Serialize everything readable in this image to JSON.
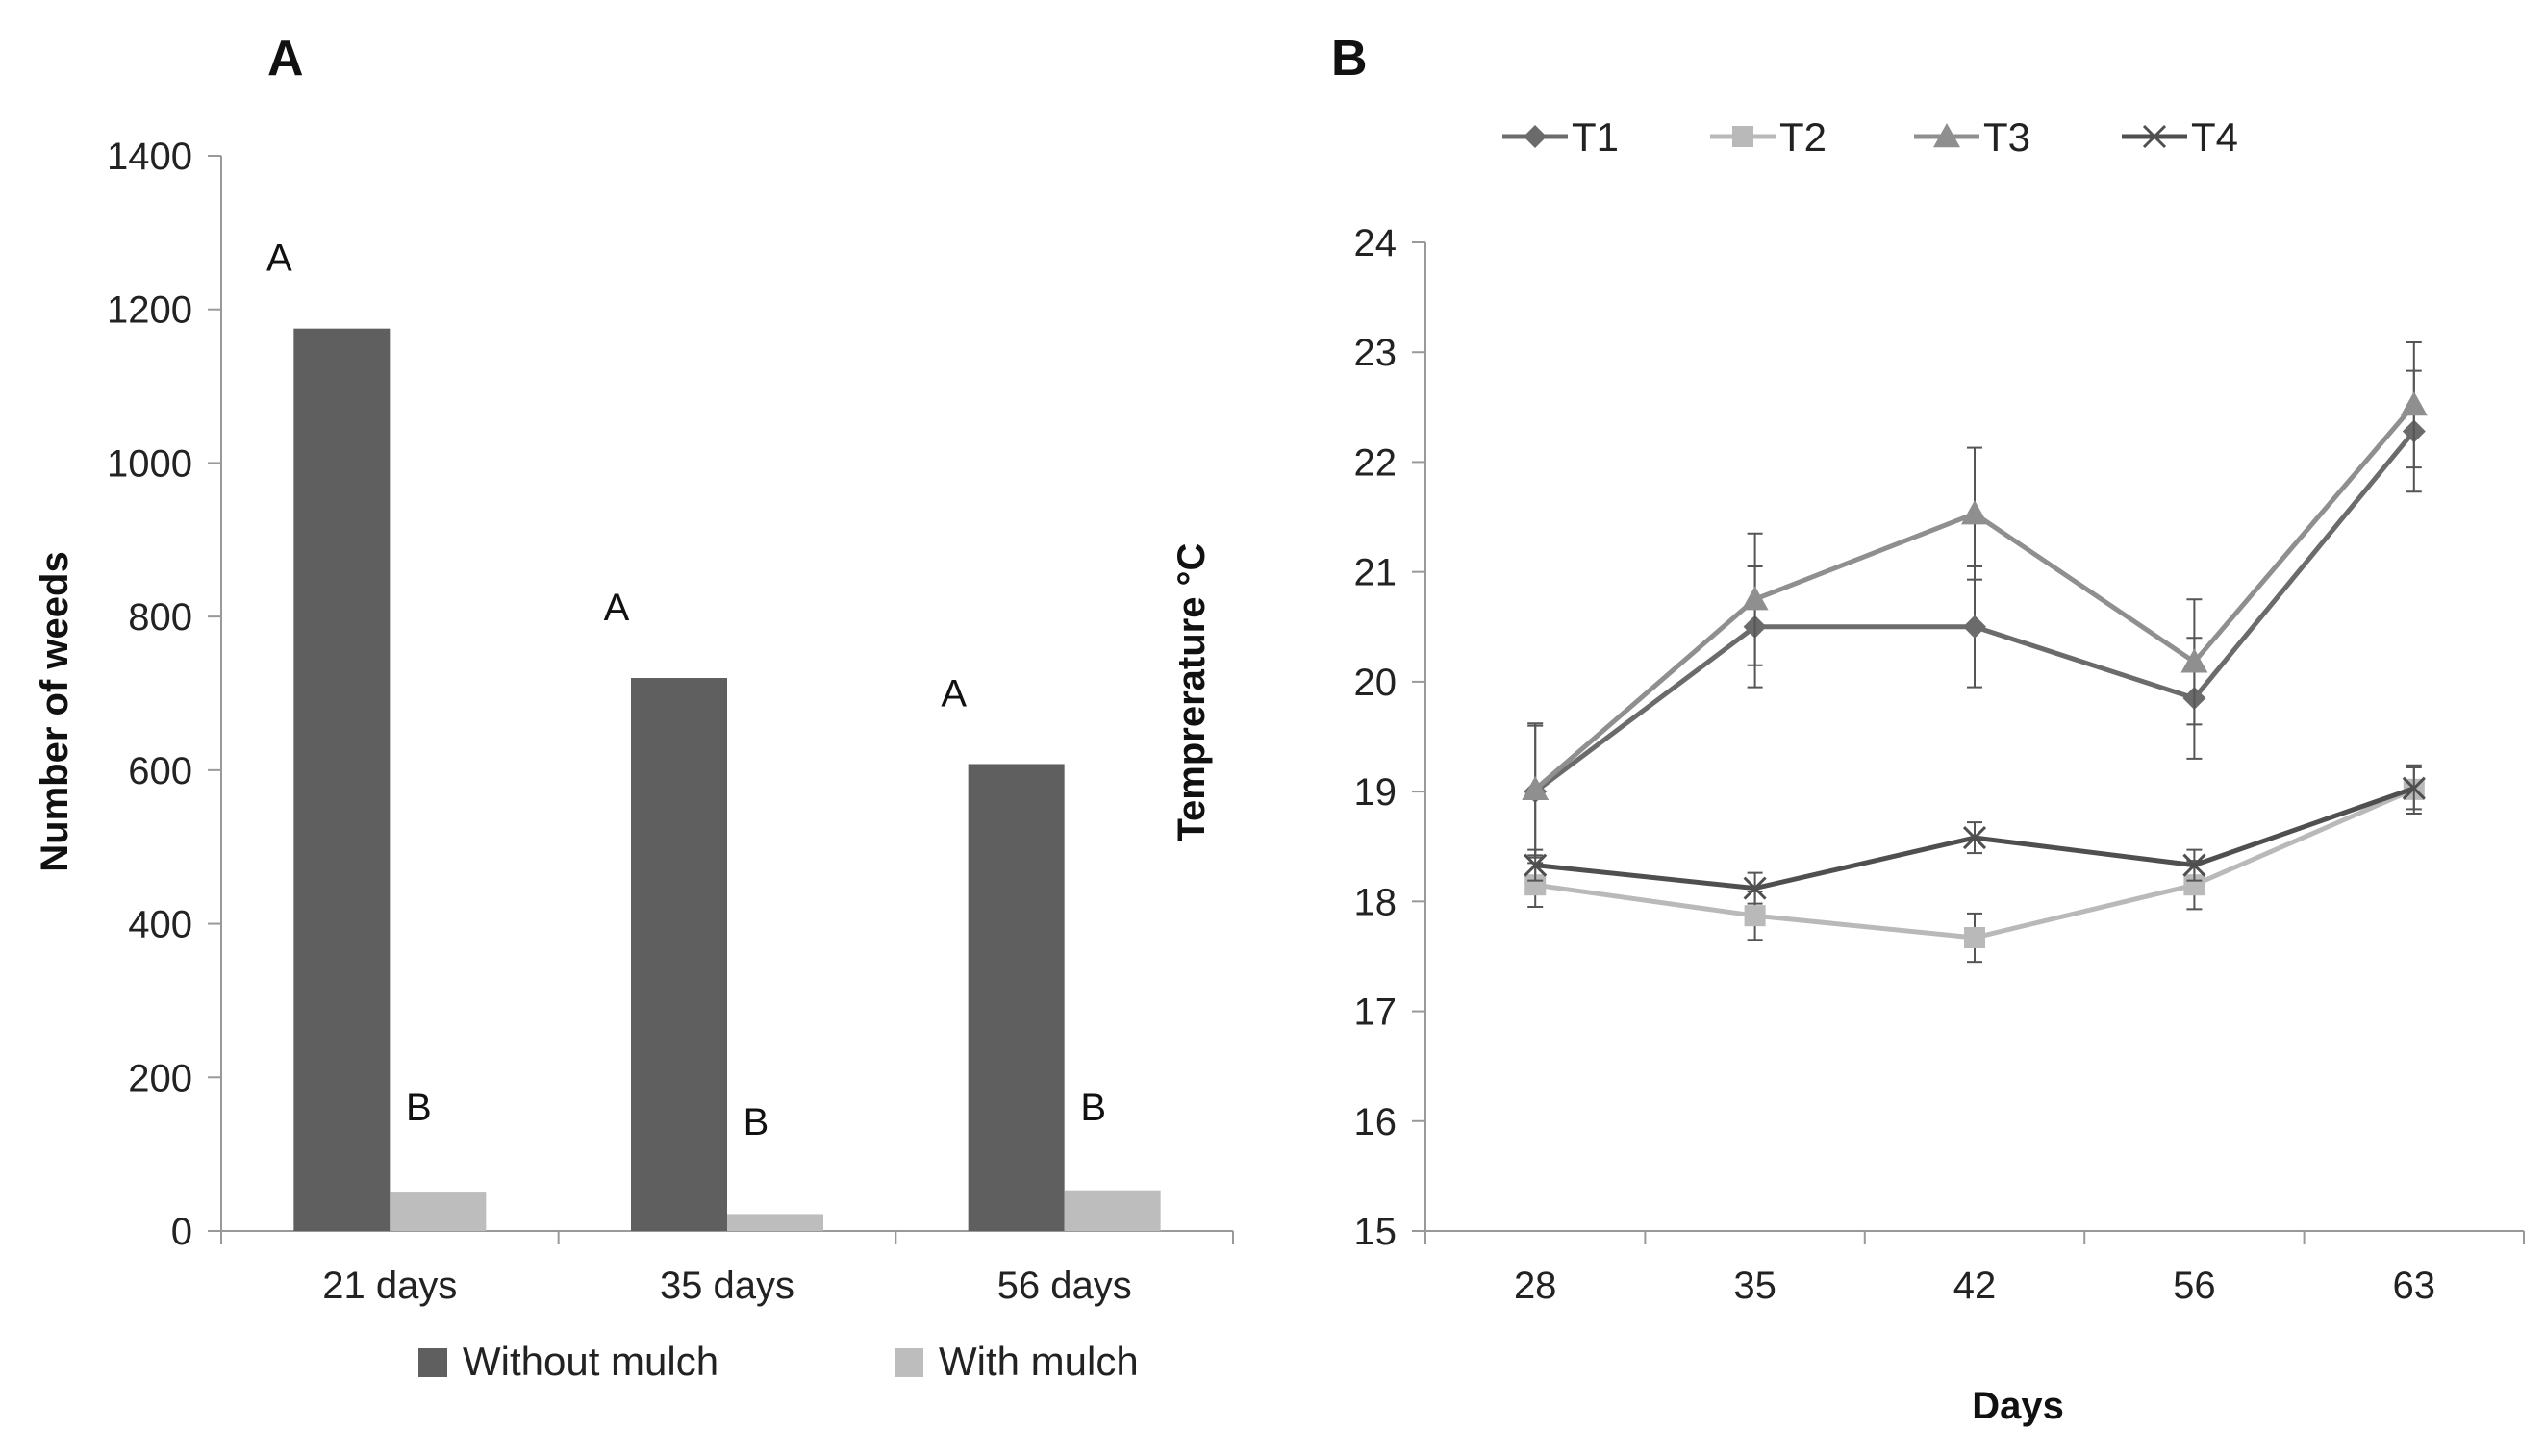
{
  "chart_data": [
    {
      "type": "bar",
      "panel_label": "A",
      "title": "",
      "ylabel": "Number of weeds",
      "xlabel": "",
      "categories": [
        "21 days",
        "35 days",
        "56 days"
      ],
      "ylim": [
        0,
        1400
      ],
      "yticks": [
        "0",
        "200",
        "400",
        "600",
        "800",
        "1000",
        "1200",
        "1400"
      ],
      "grid": false,
      "legend_position": "bottom",
      "series": [
        {
          "name": "Without mulch",
          "color": "#5f5f5f",
          "values": [
            1175,
            720,
            608
          ],
          "letters": [
            "A",
            "A",
            "A"
          ]
        },
        {
          "name": "With mulch",
          "color": "#bdbdbd",
          "values": [
            50,
            22,
            53
          ],
          "letters": [
            "B",
            "B",
            "B"
          ]
        }
      ]
    },
    {
      "type": "line",
      "panel_label": "B",
      "title": "",
      "ylabel": "Temprerature °C",
      "xlabel": "Days",
      "x": [
        "28",
        "35",
        "42",
        "56",
        "63"
      ],
      "ylim": [
        15,
        24
      ],
      "yticks": [
        "15",
        "16",
        "17",
        "18",
        "19",
        "20",
        "21",
        "22",
        "23",
        "24"
      ],
      "grid": false,
      "legend_position": "top",
      "series": [
        {
          "name": "T1",
          "color": "#6b6b6b",
          "marker": "diamond",
          "values": [
            19.0,
            20.5,
            20.5,
            19.85,
            22.28
          ],
          "errors": [
            0.6,
            0.55,
            0.55,
            0.55,
            0.55
          ]
        },
        {
          "name": "T2",
          "color": "#b9b9b9",
          "marker": "square",
          "values": [
            18.15,
            17.87,
            17.67,
            18.15,
            19.02
          ],
          "errors": [
            0.2,
            0.22,
            0.22,
            0.22,
            0.22
          ]
        },
        {
          "name": "T3",
          "color": "#8f8f8f",
          "marker": "triangle",
          "values": [
            19.02,
            20.75,
            21.53,
            20.18,
            22.52
          ],
          "errors": [
            0.6,
            0.6,
            0.6,
            0.57,
            0.57
          ]
        },
        {
          "name": "T4",
          "color": "#4f4f4f",
          "marker": "x",
          "values": [
            18.33,
            18.12,
            18.58,
            18.33,
            19.03
          ],
          "errors": [
            0.14,
            0.14,
            0.14,
            0.14,
            0.19
          ]
        }
      ]
    }
  ]
}
